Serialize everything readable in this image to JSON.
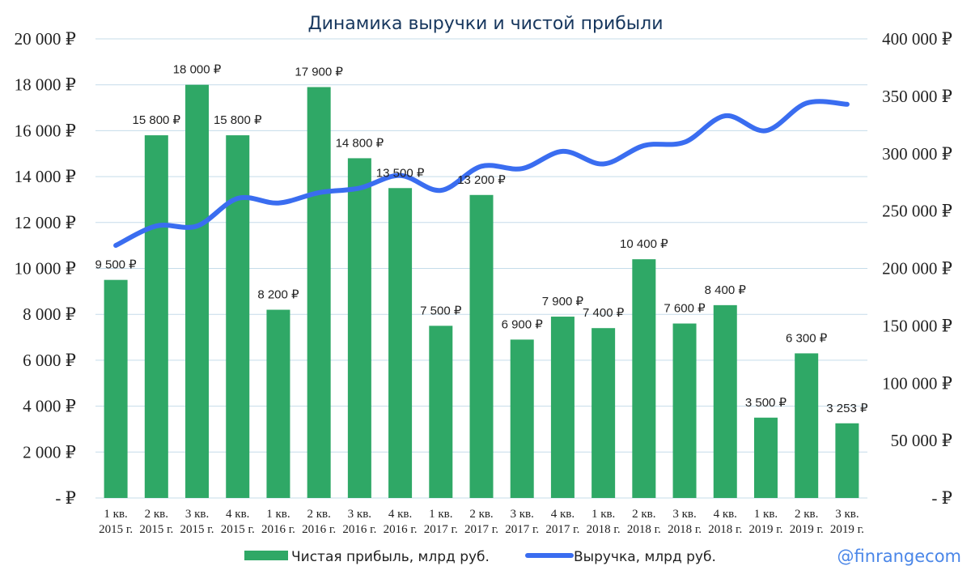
{
  "chart_data": {
    "type": "bar",
    "title": "Динамика выручки и чистой прибыли",
    "categories": [
      [
        "1 кв.",
        "2015 г."
      ],
      [
        "2 кв.",
        "2015 г."
      ],
      [
        "3 кв.",
        "2015 г."
      ],
      [
        "4 кв.",
        "2015 г."
      ],
      [
        "1 кв.",
        "2016 г."
      ],
      [
        "2 кв.",
        "2016 г."
      ],
      [
        "3 кв.",
        "2016 г."
      ],
      [
        "4 кв.",
        "2016 г."
      ],
      [
        "1 кв.",
        "2017 г."
      ],
      [
        "2 кв.",
        "2017 г."
      ],
      [
        "3 кв.",
        "2017 г."
      ],
      [
        "4 кв.",
        "2017 г."
      ],
      [
        "1 кв.",
        "2018 г."
      ],
      [
        "2 кв.",
        "2018 г."
      ],
      [
        "3 кв.",
        "2018 г."
      ],
      [
        "4 кв.",
        "2018 г."
      ],
      [
        "1 кв.",
        "2019 г."
      ],
      [
        "2 кв.",
        "2019 г."
      ],
      [
        "3 кв.",
        "2019 г."
      ]
    ],
    "series": [
      {
        "name": "Чистая прибыль, млрд руб.",
        "type": "bar",
        "axis": "left",
        "color": "#2fa866",
        "values": [
          9500,
          15800,
          18000,
          15800,
          8200,
          17900,
          14800,
          13500,
          7500,
          13200,
          6900,
          7900,
          7400,
          10400,
          7600,
          8400,
          3500,
          6300,
          3253
        ],
        "labels": [
          "9 500 ₽",
          "15 800 ₽",
          "18 000 ₽",
          "15 800 ₽",
          "8 200 ₽",
          "17 900 ₽",
          "14 800 ₽",
          "13 500 ₽",
          "7 500 ₽",
          "13 200 ₽",
          "6 900 ₽",
          "7 900 ₽",
          "7 400 ₽",
          "10 400 ₽",
          "7 600 ₽",
          "8 400 ₽",
          "3 500 ₽",
          "6 300 ₽",
          "3 253 ₽"
        ]
      },
      {
        "name": "Выручка, млрд руб.",
        "type": "line",
        "axis": "right",
        "color": "#3a6df0",
        "values": [
          220000,
          237000,
          237000,
          261000,
          257000,
          266000,
          270000,
          281000,
          268000,
          289000,
          287000,
          302000,
          291000,
          307000,
          310000,
          333000,
          320000,
          344000,
          343000
        ]
      }
    ],
    "y_left": {
      "ylim": [
        0,
        20000
      ],
      "ticks": [
        0,
        2000,
        4000,
        6000,
        8000,
        10000,
        12000,
        14000,
        16000,
        18000,
        20000
      ],
      "tick_labels": [
        "-  ₽",
        "2 000 ₽",
        "4 000 ₽",
        "6 000 ₽",
        "8 000 ₽",
        "10 000 ₽",
        "12 000 ₽",
        "14 000 ₽",
        "16 000 ₽",
        "18 000 ₽",
        "20 000 ₽"
      ]
    },
    "y_right": {
      "ylim": [
        0,
        400000
      ],
      "ticks": [
        0,
        50000,
        100000,
        150000,
        200000,
        250000,
        300000,
        350000,
        400000
      ],
      "tick_labels": [
        "-  ₽",
        "50 000 ₽",
        "100 000 ₽",
        "150 000 ₽",
        "200 000 ₽",
        "250 000 ₽",
        "300 000 ₽",
        "350 000 ₽",
        "400 000 ₽"
      ]
    },
    "grid": true,
    "legend_position": "bottom"
  },
  "watermark": "@finrangecom"
}
